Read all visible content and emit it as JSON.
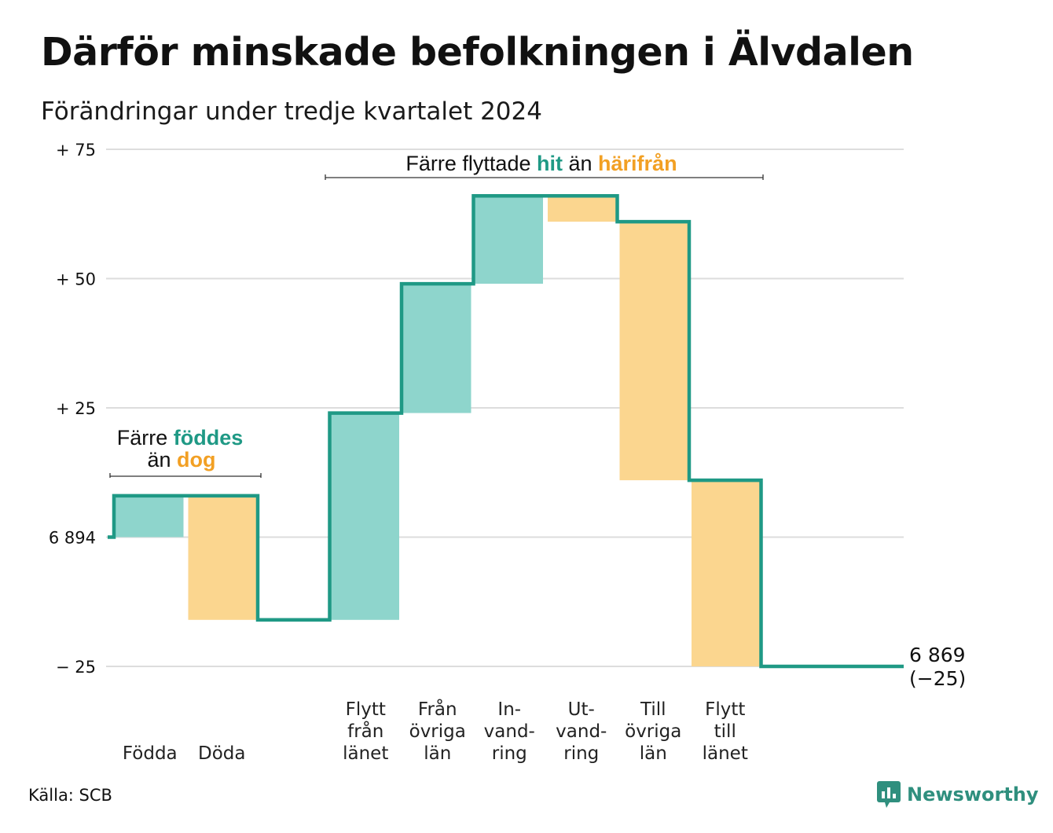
{
  "title": "Därför minskade befolkningen i Älvdalen",
  "subtitle": "Förändringar under tredje kvartalet 2024",
  "source": "Källa: SCB",
  "brand": "Newsworthy",
  "colors": {
    "line": "#1f9985",
    "increase": "#8ed5cc",
    "decrease": "#fbd68f",
    "teal_text": "#1f9985",
    "orange_text": "#f2a024",
    "grid": "#dddddd"
  },
  "chart_data": {
    "type": "waterfall",
    "baseline": 6894,
    "ylim": [
      -25,
      75
    ],
    "yticks": [
      {
        "value": 75,
        "label": "+ 75"
      },
      {
        "value": 50,
        "label": "+ 50"
      },
      {
        "value": 25,
        "label": "+ 25"
      },
      {
        "value": 0,
        "label": "6 894"
      },
      {
        "value": -25,
        "label": "− 25"
      }
    ],
    "steps": [
      {
        "label": [
          "Födda"
        ],
        "change": 8,
        "kind": "in"
      },
      {
        "label": [
          "Döda"
        ],
        "change": -24,
        "kind": "out"
      },
      {
        "label": [],
        "change": 0,
        "kind": "gap"
      },
      {
        "label": [
          "Flytt",
          "från",
          "länet"
        ],
        "change": 40,
        "kind": "in"
      },
      {
        "label": [
          "Från",
          "övriga",
          "län"
        ],
        "change": 25,
        "kind": "in"
      },
      {
        "label": [
          "In-",
          "vand-",
          "ring"
        ],
        "change": 17,
        "kind": "in"
      },
      {
        "label": [
          "Ut-",
          "vand-",
          "ring"
        ],
        "change": -5,
        "kind": "out"
      },
      {
        "label": [
          "Till",
          "övriga",
          "län"
        ],
        "change": -50,
        "kind": "out"
      },
      {
        "label": [
          "Flytt",
          "till",
          "länet"
        ],
        "change": -36,
        "kind": "out"
      },
      {
        "label": [],
        "change": 0,
        "kind": "gap"
      }
    ],
    "end": {
      "value": "6 869",
      "change": "(−25)"
    },
    "annotations": {
      "births": {
        "line1_pre": "Färre",
        "line1_highlight": "föddes",
        "line2_pre": "än",
        "line2_highlight": "dog"
      },
      "migration": {
        "pre": "Färre flyttade",
        "highlight1": "hit",
        "mid": "än",
        "highlight2": "härifrån"
      }
    }
  }
}
